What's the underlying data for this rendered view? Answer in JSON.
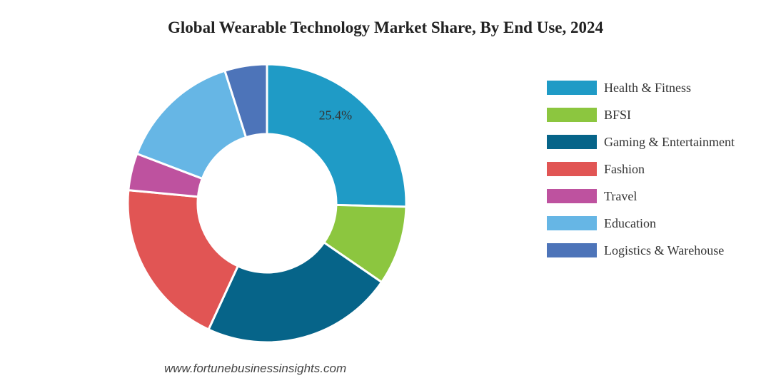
{
  "chart_data": {
    "type": "pie",
    "title": "Global Wearable Technology Market Share, By End Use, 2024",
    "donut": true,
    "slices": [
      {
        "label": "Health & Fitness",
        "value": 25.4,
        "color": "#1f9bc6",
        "data_label": "25.4%"
      },
      {
        "label": "BFSI",
        "value": 9.2,
        "color": "#8cc63f",
        "data_label": ""
      },
      {
        "label": "Gaming & Entertainment",
        "value": 22.3,
        "color": "#066489",
        "data_label": ""
      },
      {
        "label": "Fashion",
        "value": 19.6,
        "color": "#e15554",
        "data_label": ""
      },
      {
        "label": "Travel",
        "value": 4.3,
        "color": "#be529f",
        "data_label": ""
      },
      {
        "label": "Education",
        "value": 14.3,
        "color": "#66b6e5",
        "data_label": ""
      },
      {
        "label": "Logistics & Warehouse",
        "value": 4.9,
        "color": "#4d74b9",
        "data_label": ""
      }
    ],
    "legend_position": "right"
  },
  "source_text": "www.fortunebusinessinsights.com"
}
